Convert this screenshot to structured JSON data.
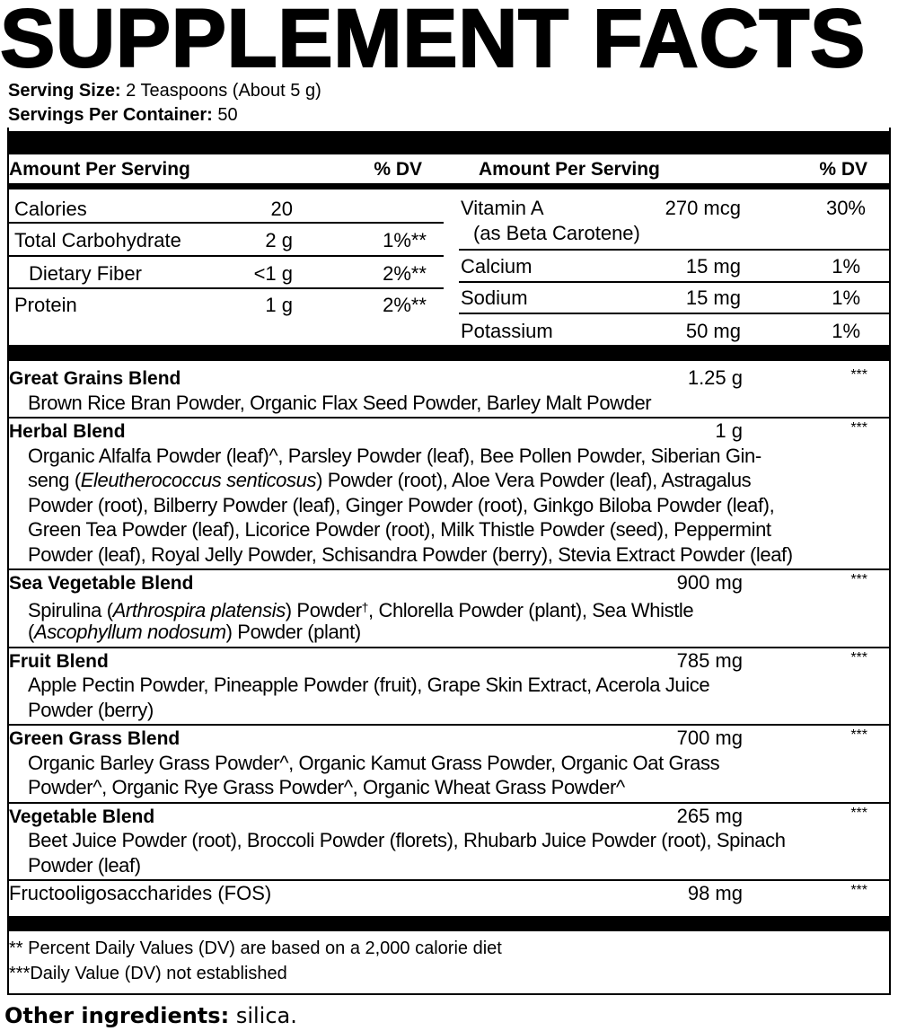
{
  "title": "SUPPLEMENT FACTS",
  "serving": {
    "size_label": "Serving Size:",
    "size_value": "2 Teaspoons (About 5 g)",
    "per_container_label": "Servings Per Container:",
    "per_container_value": "50"
  },
  "header": {
    "amount": "Amount Per Serving",
    "dv": "% DV"
  },
  "left_rows": [
    {
      "name": "Calories",
      "amount": "20",
      "dv": ""
    },
    {
      "name": "Total Carbohydrate",
      "amount": "2 g",
      "dv": "1%**"
    },
    {
      "name": "Dietary Fiber",
      "amount": "<1 g",
      "dv": "2%**"
    },
    {
      "name": "Protein",
      "amount": "1 g",
      "dv": "2%**"
    }
  ],
  "right_rows": [
    {
      "name": "Vitamin A",
      "sub": "(as Beta Carotene)",
      "amount": "270 mcg",
      "dv": "30%"
    },
    {
      "name": "Calcium",
      "amount": "15 mg",
      "dv": "1%"
    },
    {
      "name": "Sodium",
      "amount": "15 mg",
      "dv": "1%"
    },
    {
      "name": "Potassium",
      "amount": "50 mg",
      "dv": "1%"
    }
  ],
  "blends": [
    {
      "name": "Great Grains Blend",
      "amount": "1.25 g",
      "dv": "***",
      "lines": [
        [
          {
            "t": "Brown Rice Bran Powder, Organic Flax Seed Powder, Barley Malt Powder"
          }
        ]
      ]
    },
    {
      "name": "Herbal Blend",
      "amount": "1 g",
      "dv": "***",
      "lines": [
        [
          {
            "t": "Organic Alfalfa Powder (leaf)^, Parsley Powder (leaf), Bee Pollen Powder, Siberian Gin-"
          }
        ],
        [
          {
            "t": "seng ("
          },
          {
            "t": "Eleutherococcus senticosus",
            "i": true
          },
          {
            "t": ") Powder (root), Aloe Vera Powder (leaf), Astragalus"
          }
        ],
        [
          {
            "t": "Powder (root), Bilberry Powder (leaf), Ginger Powder (root), Ginkgo Biloba Powder (leaf),"
          }
        ],
        [
          {
            "t": "Green Tea Powder (leaf), Licorice Powder (root), Milk Thistle Powder (seed), Peppermint"
          }
        ],
        [
          {
            "t": "Powder (leaf), Royal Jelly Powder, Schisandra Powder (berry), Stevia Extract Powder (leaf)"
          }
        ]
      ]
    },
    {
      "name": "Sea Vegetable Blend",
      "amount": "900 mg",
      "dv": "***",
      "lines": [
        [
          {
            "t": "Spirulina ("
          },
          {
            "t": "Arthrospira platensis",
            "i": true
          },
          {
            "t": ") Powder"
          },
          {
            "t": "†",
            "sup": true
          },
          {
            "t": ", Chlorella Powder (plant), Sea Whistle"
          }
        ],
        [
          {
            "t": "("
          },
          {
            "t": "Ascophyllum nodosum",
            "i": true
          },
          {
            "t": ") Powder (plant)"
          }
        ]
      ]
    },
    {
      "name": "Fruit Blend",
      "amount": "785 mg",
      "dv": "***",
      "lines": [
        [
          {
            "t": "Apple Pectin Powder, Pineapple Powder (fruit), Grape Skin Extract, Acerola Juice"
          }
        ],
        [
          {
            "t": "Powder (berry)"
          }
        ]
      ]
    },
    {
      "name": "Green Grass Blend",
      "amount": "700 mg",
      "dv": "***",
      "lines": [
        [
          {
            "t": "Organic Barley Grass Powder^, Organic Kamut Grass Powder, Organic Oat Grass"
          }
        ],
        [
          {
            "t": "Powder^, Organic Rye Grass Powder^, Organic Wheat Grass Powder^"
          }
        ]
      ]
    },
    {
      "name": "Vegetable Blend",
      "amount": "265 mg",
      "dv": "***",
      "lines": [
        [
          {
            "t": "Beet Juice Powder (root), Broccoli Powder (florets), Rhubarb Juice Powder (root), Spinach"
          }
        ],
        [
          {
            "t": "Powder (leaf)"
          }
        ]
      ]
    },
    {
      "name": "Fructooligosaccharides (FOS)",
      "amount": "98 mg",
      "dv": "***",
      "plain": true,
      "lines": []
    }
  ],
  "footnotes": [
    "** Percent Daily Values (DV) are based on a 2,000 calorie diet",
    "***Daily Value (DV) not established"
  ],
  "other": {
    "label": "Other ingredients:",
    "value": "silica."
  }
}
